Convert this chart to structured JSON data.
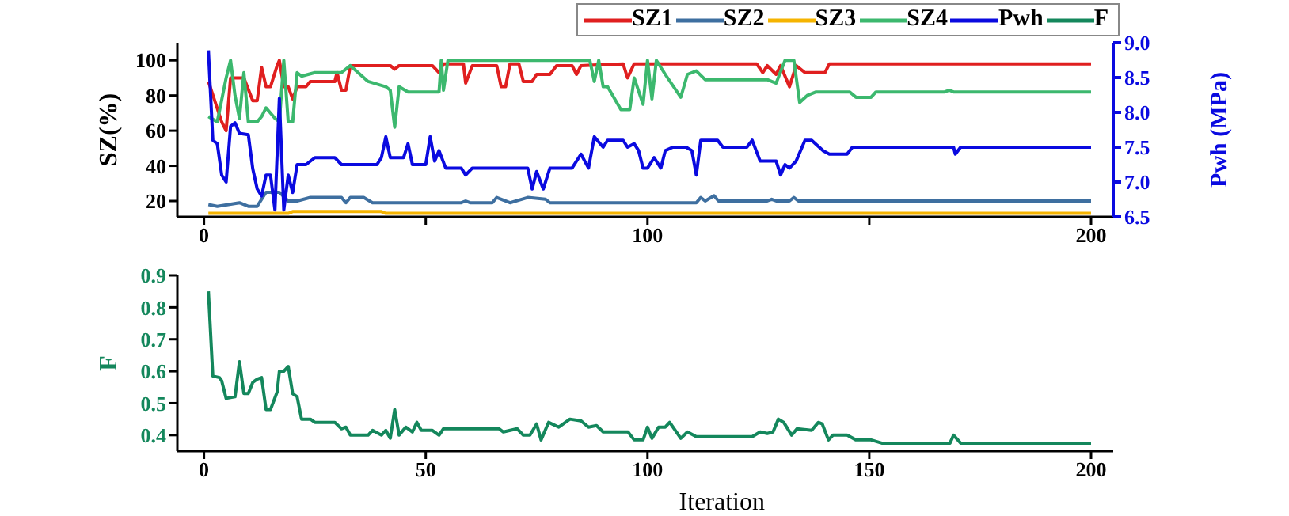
{
  "chart_data": [
    {
      "type": "line",
      "ylabel": "SZ(%)",
      "y2label": "Pwh (MPa)",
      "xlim": [
        -6,
        205
      ],
      "xticks": [
        0,
        {
          "value": 50,
          "label": null
        },
        100,
        {
          "value": 150,
          "label": null
        },
        200
      ],
      "ylim": [
        11,
        110
      ],
      "yticks": [
        20,
        40,
        60,
        80,
        100
      ],
      "y2lim": [
        6.5,
        9.0
      ],
      "y2ticks": [
        {
          "value": 6.5,
          "label": "6.5"
        },
        {
          "value": 7,
          "label": "7.0"
        },
        {
          "value": 7.5,
          "label": "7.5"
        },
        {
          "value": 8,
          "label": "8.0"
        },
        {
          "value": 8.5,
          "label": "8.5"
        },
        {
          "value": 9,
          "label": "9.0"
        }
      ],
      "legend": "top right",
      "series": [
        {
          "name": "SZ1",
          "color": "#e01f1f",
          "x": [
            1,
            4,
            5,
            6,
            7,
            9,
            11,
            12,
            13,
            14,
            15,
            16.5,
            17,
            18,
            19,
            20,
            21,
            23,
            24,
            29.5,
            30,
            31,
            32,
            33,
            42,
            43,
            44,
            51.5,
            53,
            54,
            58.5,
            59,
            60.5,
            66,
            67,
            68,
            69,
            71,
            72,
            74,
            75,
            78,
            79.5,
            83,
            84,
            85,
            94.5,
            95.5,
            97,
            124.6,
            126,
            127,
            129,
            130,
            132,
            133.5,
            135.5,
            140,
            141,
            200
          ],
          "values": [
            88,
            65,
            60,
            90,
            90,
            90,
            77,
            77,
            96,
            85,
            85,
            97,
            100,
            85,
            85,
            78,
            85,
            85,
            88,
            88,
            93,
            83,
            83,
            97,
            97,
            95,
            97,
            97,
            93,
            98,
            98,
            87,
            97,
            97,
            85,
            85,
            98,
            98,
            88,
            88,
            92,
            92,
            97,
            97,
            92,
            97,
            98,
            90,
            98,
            98,
            93,
            97,
            92,
            97,
            85,
            97,
            93,
            93,
            98,
            98
          ]
        },
        {
          "name": "SZ2",
          "color": "#3e6fa0",
          "x": [
            1,
            3,
            8,
            10,
            12,
            14,
            17,
            19,
            21,
            24,
            31,
            32,
            33,
            36,
            38,
            58,
            59,
            60,
            65,
            66,
            69,
            73,
            77,
            78,
            111,
            112,
            113,
            115,
            116,
            127,
            128,
            129,
            132,
            133,
            134,
            200
          ],
          "values": [
            18,
            17,
            19,
            17,
            17,
            25,
            25,
            20,
            20,
            22,
            22,
            19,
            22,
            22,
            19,
            19,
            20,
            19,
            19,
            22,
            19,
            22,
            21,
            19,
            19,
            22,
            20,
            23,
            20,
            20,
            21,
            20,
            20,
            22,
            20,
            20
          ]
        },
        {
          "name": "SZ3",
          "color": "#f5b400",
          "x": [
            1,
            19,
            20,
            40,
            41,
            200
          ],
          "values": [
            13,
            13,
            14,
            14,
            13,
            13
          ]
        },
        {
          "name": "SZ4",
          "color": "#3cb86e",
          "x": [
            1,
            3,
            5,
            6,
            7,
            8,
            9,
            10,
            12,
            13,
            14,
            16,
            17,
            18,
            19,
            20,
            21,
            22,
            25,
            31,
            33,
            37,
            41,
            42,
            43,
            44,
            46,
            53,
            53.5,
            54,
            55,
            87,
            88,
            89,
            90,
            91,
            94,
            96,
            97,
            99,
            100,
            101,
            102,
            104,
            107.5,
            109,
            111,
            113,
            127,
            129,
            131,
            133,
            134.3,
            136,
            138,
            145.6,
            147,
            150.4,
            151.5,
            167,
            168,
            169,
            200
          ],
          "values": [
            68,
            65,
            90,
            100,
            80,
            67,
            93,
            65,
            65,
            68,
            73,
            67,
            65,
            100,
            65,
            65,
            93,
            91,
            93,
            93,
            97,
            88,
            85,
            83,
            62,
            85,
            82,
            82,
            100,
            83,
            100,
            100,
            88,
            100,
            85,
            85,
            72,
            72,
            90,
            75,
            100,
            78,
            100,
            92,
            79,
            92,
            94,
            89,
            89,
            87,
            100,
            100,
            76,
            80,
            82,
            82,
            79,
            79,
            82,
            82,
            83,
            82,
            82
          ]
        },
        {
          "name": "Pwh",
          "color": "#0a0ae0",
          "axis": "y2",
          "x": [
            1,
            2,
            3,
            4,
            5,
            6,
            7,
            8,
            10,
            11,
            12,
            13,
            14,
            15,
            16,
            17,
            18,
            19,
            20,
            21,
            23,
            25,
            29.5,
            31,
            39,
            40,
            41,
            42,
            45,
            46,
            47,
            50,
            51,
            52,
            53,
            54.5,
            58,
            59,
            60.5,
            73,
            74,
            75,
            76.5,
            78,
            83,
            85,
            86.7,
            88,
            90,
            91,
            94.5,
            95.5,
            97,
            98,
            99,
            100,
            101.5,
            103,
            104,
            105.7,
            108.7,
            110,
            111,
            112,
            115.8,
            117,
            122.4,
            123.6,
            125.4,
            129,
            130,
            131,
            132,
            133.5,
            135.5,
            137,
            139.6,
            141,
            145,
            146.2,
            169,
            169.4,
            170.6,
            200
          ],
          "values": [
            8.89,
            7.6,
            7.55,
            7.1,
            7.0,
            7.8,
            7.85,
            7.7,
            7.68,
            7.19,
            6.9,
            6.8,
            7.1,
            7.1,
            6.6,
            8.2,
            6.6,
            7.1,
            6.85,
            7.25,
            7.25,
            7.35,
            7.35,
            7.25,
            7.25,
            7.35,
            7.65,
            7.35,
            7.35,
            7.55,
            7.25,
            7.25,
            7.65,
            7.3,
            7.45,
            7.2,
            7.2,
            7.1,
            7.2,
            7.2,
            6.9,
            7.15,
            6.9,
            7.2,
            7.2,
            7.4,
            7.2,
            7.65,
            7.5,
            7.6,
            7.6,
            7.5,
            7.55,
            7.45,
            7.2,
            7.2,
            7.35,
            7.2,
            7.45,
            7.5,
            7.5,
            7.45,
            7.1,
            7.6,
            7.6,
            7.5,
            7.5,
            7.6,
            7.3,
            7.3,
            7.1,
            7.25,
            7.2,
            7.3,
            7.6,
            7.6,
            7.45,
            7.4,
            7.4,
            7.5,
            7.5,
            7.4,
            7.5,
            7.5
          ]
        }
      ]
    },
    {
      "type": "line",
      "ylabel": "F",
      "xlabel": "Iteration",
      "xlim": [
        -6,
        205
      ],
      "xticks": [
        0,
        50,
        100,
        150,
        200
      ],
      "ylim": [
        0.35,
        0.9
      ],
      "yticks": [
        0.4,
        0.5,
        0.6,
        0.7,
        0.8,
        0.9
      ],
      "legend": "top right",
      "series": [
        {
          "name": "F",
          "color": "#14875c",
          "x": [
            1,
            2,
            3.5,
            4,
            5,
            7,
            8,
            9,
            10,
            11,
            12,
            13,
            14,
            15,
            16.5,
            17,
            18,
            19,
            20,
            21,
            22,
            24,
            25,
            29.5,
            31,
            32,
            33,
            37,
            38,
            40,
            41,
            42,
            43,
            44,
            45.5,
            47,
            48,
            49,
            51.5,
            53,
            54,
            66.5,
            67.5,
            70.6,
            72,
            73.5,
            75,
            76,
            77.7,
            80,
            82.5,
            85,
            86.7,
            88.5,
            90,
            92,
            95.6,
            97,
            99,
            100,
            101,
            102.5,
            104,
            105,
            107.5,
            109,
            111,
            115.8,
            123.6,
            125.4,
            127,
            128.3,
            129.5,
            130.7,
            132.5,
            133.7,
            137,
            138.5,
            139.4,
            140.8,
            141.8,
            145,
            147,
            150.4,
            152.8,
            168.2,
            169,
            170.6,
            200
          ],
          "values": [
            0.85,
            0.585,
            0.58,
            0.57,
            0.515,
            0.52,
            0.63,
            0.53,
            0.53,
            0.565,
            0.575,
            0.58,
            0.48,
            0.48,
            0.535,
            0.6,
            0.6,
            0.615,
            0.53,
            0.52,
            0.45,
            0.45,
            0.44,
            0.44,
            0.42,
            0.425,
            0.4,
            0.4,
            0.415,
            0.4,
            0.415,
            0.39,
            0.48,
            0.4,
            0.425,
            0.41,
            0.44,
            0.415,
            0.415,
            0.4,
            0.42,
            0.42,
            0.41,
            0.42,
            0.4,
            0.4,
            0.435,
            0.385,
            0.44,
            0.425,
            0.45,
            0.445,
            0.425,
            0.43,
            0.41,
            0.41,
            0.41,
            0.385,
            0.385,
            0.425,
            0.39,
            0.425,
            0.425,
            0.44,
            0.39,
            0.41,
            0.395,
            0.395,
            0.395,
            0.41,
            0.405,
            0.41,
            0.45,
            0.44,
            0.4,
            0.42,
            0.415,
            0.44,
            0.435,
            0.385,
            0.4,
            0.4,
            0.385,
            0.385,
            0.375,
            0.375,
            0.4,
            0.375,
            0.375
          ]
        }
      ]
    }
  ]
}
